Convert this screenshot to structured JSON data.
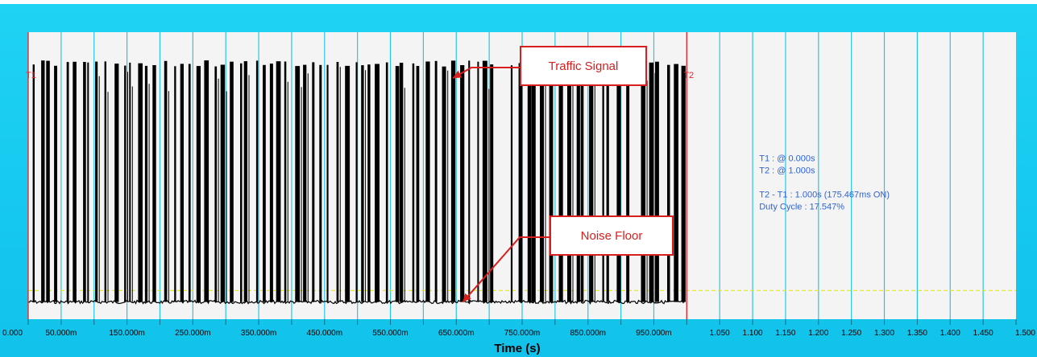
{
  "colors": {
    "frame": "#16c9ef",
    "plot_bg": "#f4f4f4",
    "grid": "#27c6e6",
    "cursor": "#e8262b",
    "trace": "#000000",
    "threshold": "#e8e800",
    "measurement_text": "#2f63d6",
    "callout_border": "#d91e1e",
    "callout_text": "#d91e1e"
  },
  "chart_data": {
    "type": "line",
    "title": "",
    "xlabel": "Time (s)",
    "ylabel": "",
    "xlim": [
      0.0,
      1.5
    ],
    "x_tick_labels": [
      "0.000",
      "50.000m",
      "150.000m",
      "250.000m",
      "350.000m",
      "450.000m",
      "550.000m",
      "650.000m",
      "750.000m",
      "850.000m",
      "950.000m",
      "1.050",
      "1.100",
      "1.150",
      "1.200",
      "1.250",
      "1.300",
      "1.350",
      "1.400",
      "1.450",
      "1.500"
    ],
    "x_tick_values": [
      0.0,
      0.05,
      0.15,
      0.25,
      0.35,
      0.45,
      0.55,
      0.65,
      0.75,
      0.85,
      0.95,
      1.05,
      1.1,
      1.15,
      1.2,
      1.25,
      1.3,
      1.35,
      1.4,
      1.45,
      1.5
    ],
    "grid": true,
    "trace": {
      "x_start": 0.0,
      "x_end": 1.0,
      "floor_level": 0.06,
      "burst_level": 0.88,
      "burst_count": 80
    },
    "threshold_level": 0.1,
    "cursors": [
      {
        "label": "T1",
        "x": 0.0
      },
      {
        "label": "T2",
        "x": 1.0
      }
    ],
    "measurements": [
      "T1 : @ 0.000s",
      "T2 : @ 1.000s",
      "",
      "T2 - T1 : 1.000s (175.467ms ON)",
      "Duty Cycle : 17.547%"
    ],
    "annotations": [
      {
        "label": "Traffic Signal",
        "x": 0.645,
        "y": 0.84
      },
      {
        "label": "Noise Floor",
        "x": 0.66,
        "y": 0.06
      }
    ]
  }
}
